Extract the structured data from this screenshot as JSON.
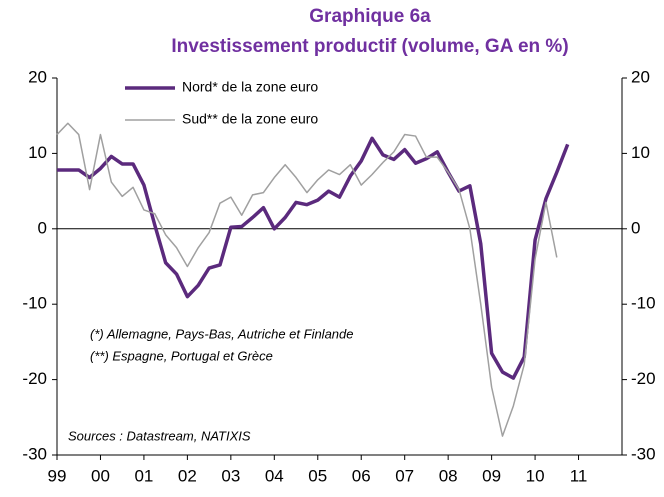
{
  "chart_data": {
    "type": "line",
    "title": "Graphique 6a",
    "subtitle": "Investissement productif (volume, GA en %)",
    "annotations": [
      "(*) Allemagne, Pays-Bas, Autriche et Finlande",
      "(**) Espagne, Portugal et Grèce"
    ],
    "source": "Sources : Datastream, NATIXIS",
    "x": [
      1999,
      1999.25,
      1999.5,
      1999.75,
      2000,
      2000.25,
      2000.5,
      2000.75,
      2001,
      2001.25,
      2001.5,
      2001.75,
      2002,
      2002.25,
      2002.5,
      2002.75,
      2003,
      2003.25,
      2003.5,
      2003.75,
      2004,
      2004.25,
      2004.5,
      2004.75,
      2005,
      2005.25,
      2005.5,
      2005.75,
      2006,
      2006.25,
      2006.5,
      2006.75,
      2007,
      2007.25,
      2007.5,
      2007.75,
      2008,
      2008.25,
      2008.5,
      2008.75,
      2009,
      2009.25,
      2009.5,
      2009.75,
      2010,
      2010.25,
      2010.5,
      2010.75
    ],
    "series": [
      {
        "name": "Nord* de la zone euro",
        "color": "#5b2a7d",
        "width": 3.5,
        "values": [
          7.8,
          7.8,
          7.8,
          6.8,
          8,
          9.6,
          8.6,
          8.6,
          5.8,
          0.5,
          -4.5,
          -6,
          -9,
          -7.5,
          -5.2,
          -4.8,
          0.2,
          0.3,
          1.5,
          2.8,
          0,
          1.5,
          3.5,
          3.2,
          3.8,
          5,
          4.2,
          7,
          9,
          12,
          9.8,
          9.2,
          10.5,
          8.7,
          9.3,
          10.2,
          7.5,
          5,
          5.7,
          -2,
          -16.5,
          -19,
          -19.8,
          -17,
          -1.5,
          4,
          7.5,
          11.2
        ]
      },
      {
        "name": "Sud** de la zone euro",
        "color": "#a0a0a0",
        "width": 1.5,
        "values": [
          12.5,
          14,
          12.5,
          5.2,
          12.5,
          6.2,
          4.3,
          5.5,
          2.5,
          2,
          -0.8,
          -2.5,
          -5,
          -2.5,
          -0.5,
          3.4,
          4.2,
          1.8,
          4.5,
          4.8,
          6.8,
          8.5,
          6.8,
          4.8,
          6.5,
          7.8,
          7.2,
          8.5,
          5.8,
          7.2,
          8.8,
          10.2,
          12.5,
          12.3,
          9.5,
          9.5,
          7.5,
          5.2,
          0,
          -10,
          -21,
          -27.5,
          -23.5,
          -18,
          -4,
          3.5,
          -3.8,
          null
        ]
      }
    ],
    "xlim": [
      1999,
      2012
    ],
    "xticks": [
      {
        "value": 1999,
        "label": "99"
      },
      {
        "value": 2000,
        "label": "00"
      },
      {
        "value": 2001,
        "label": "01"
      },
      {
        "value": 2002,
        "label": "02"
      },
      {
        "value": 2003,
        "label": "03"
      },
      {
        "value": 2004,
        "label": "04"
      },
      {
        "value": 2005,
        "label": "05"
      },
      {
        "value": 2006,
        "label": "06"
      },
      {
        "value": 2007,
        "label": "07"
      },
      {
        "value": 2008,
        "label": "08"
      },
      {
        "value": 2009,
        "label": "09"
      },
      {
        "value": 2010,
        "label": "10"
      },
      {
        "value": 2011,
        "label": "11"
      }
    ],
    "ylim": [
      -30,
      20
    ],
    "yticks": [
      -30,
      -20,
      -10,
      0,
      10,
      20
    ],
    "y2lim": [
      -30,
      20
    ],
    "y2ticks": [
      -30,
      -20,
      -10,
      0,
      10,
      20
    ]
  }
}
